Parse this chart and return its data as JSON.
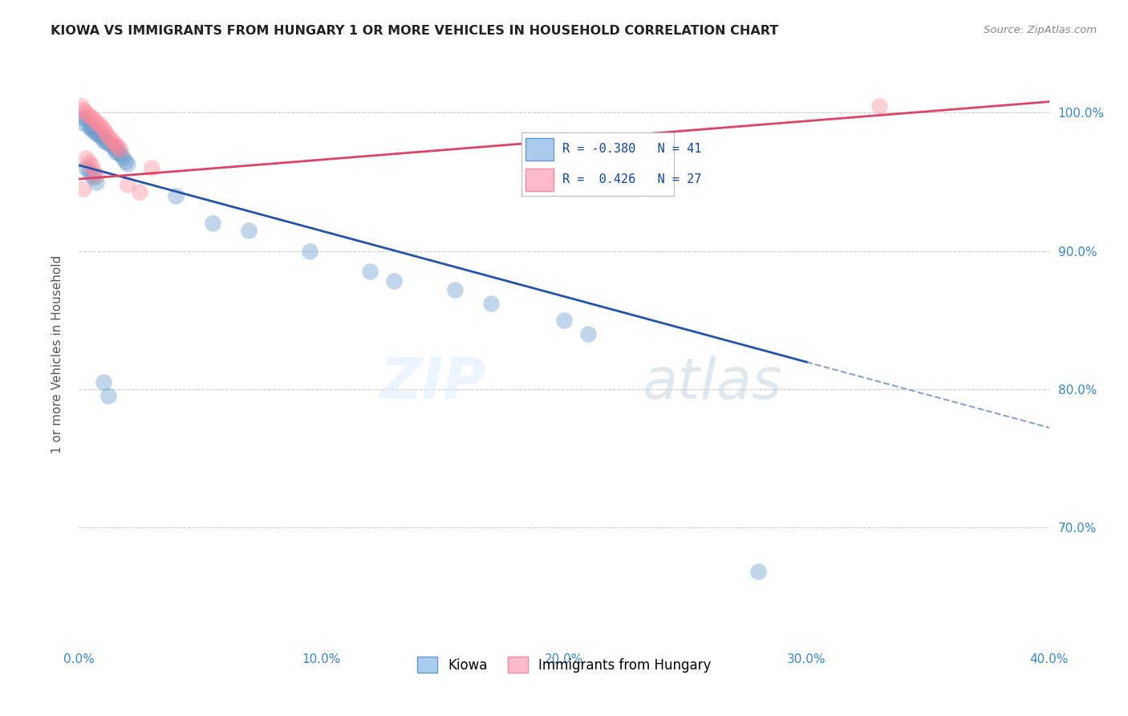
{
  "title": "KIOWA VS IMMIGRANTS FROM HUNGARY 1 OR MORE VEHICLES IN HOUSEHOLD CORRELATION CHART",
  "source": "Source: ZipAtlas.com",
  "ylabel": "1 or more Vehicles in Household",
  "xlim": [
    0.0,
    0.4
  ],
  "ylim": [
    0.615,
    1.035
  ],
  "xtick_labels": [
    "0.0%",
    "",
    "",
    "",
    "",
    "",
    "",
    "",
    "10.0%",
    "",
    "",
    "",
    "",
    "",
    "",
    "",
    "20.0%",
    "",
    "",
    "",
    "",
    "",
    "",
    "",
    "30.0%",
    "",
    "",
    "",
    "",
    "",
    "",
    "",
    "40.0%"
  ],
  "xtick_values": [
    0.0,
    0.0125,
    0.025,
    0.0375,
    0.05,
    0.0625,
    0.075,
    0.0875,
    0.1,
    0.1125,
    0.125,
    0.1375,
    0.15,
    0.1625,
    0.175,
    0.1875,
    0.2,
    0.2125,
    0.225,
    0.2375,
    0.25,
    0.2625,
    0.275,
    0.2875,
    0.3,
    0.3125,
    0.325,
    0.3375,
    0.35,
    0.3625,
    0.375,
    0.3875,
    0.4
  ],
  "ytick_labels": [
    "70.0%",
    "80.0%",
    "90.0%",
    "100.0%"
  ],
  "ytick_values": [
    0.7,
    0.8,
    0.9,
    1.0
  ],
  "kiowa_color": "#6699CC",
  "hungary_color": "#FF8899",
  "kiowa_r": -0.38,
  "kiowa_n": 41,
  "hungary_r": 0.426,
  "hungary_n": 27,
  "legend_label_kiowa": "Kiowa",
  "legend_label_hungary": "Immigrants from Hungary",
  "watermark_zip": "ZIP",
  "watermark_atlas": "atlas",
  "kiowa_line_x": [
    0.0,
    0.4
  ],
  "kiowa_line_y": [
    0.962,
    0.772
  ],
  "kiowa_line_solid_end": 0.3,
  "hungary_line_x": [
    0.0,
    0.4
  ],
  "hungary_line_y": [
    0.952,
    1.008
  ],
  "kiowa_points": [
    [
      0.001,
      0.997
    ],
    [
      0.002,
      0.993
    ],
    [
      0.003,
      0.996
    ],
    [
      0.004,
      0.99
    ],
    [
      0.005,
      0.99
    ],
    [
      0.005,
      0.988
    ],
    [
      0.006,
      0.987
    ],
    [
      0.007,
      0.985
    ],
    [
      0.008,
      0.984
    ],
    [
      0.009,
      0.983
    ],
    [
      0.01,
      0.982
    ],
    [
      0.01,
      0.98
    ],
    [
      0.011,
      0.979
    ],
    [
      0.012,
      0.978
    ],
    [
      0.013,
      0.977
    ],
    [
      0.014,
      0.975
    ],
    [
      0.015,
      0.974
    ],
    [
      0.015,
      0.972
    ],
    [
      0.016,
      0.971
    ],
    [
      0.017,
      0.97
    ],
    [
      0.018,
      0.968
    ],
    [
      0.019,
      0.965
    ],
    [
      0.02,
      0.963
    ],
    [
      0.003,
      0.96
    ],
    [
      0.004,
      0.958
    ],
    [
      0.005,
      0.955
    ],
    [
      0.006,
      0.953
    ],
    [
      0.007,
      0.95
    ],
    [
      0.04,
      0.94
    ],
    [
      0.055,
      0.92
    ],
    [
      0.07,
      0.915
    ],
    [
      0.095,
      0.9
    ],
    [
      0.12,
      0.885
    ],
    [
      0.13,
      0.878
    ],
    [
      0.155,
      0.872
    ],
    [
      0.17,
      0.862
    ],
    [
      0.01,
      0.805
    ],
    [
      0.012,
      0.795
    ],
    [
      0.2,
      0.85
    ],
    [
      0.21,
      0.84
    ],
    [
      0.28,
      0.668
    ]
  ],
  "hungary_points": [
    [
      0.001,
      1.005
    ],
    [
      0.002,
      1.002
    ],
    [
      0.003,
      1.0
    ],
    [
      0.004,
      0.998
    ],
    [
      0.005,
      0.997
    ],
    [
      0.006,
      0.995
    ],
    [
      0.007,
      0.993
    ],
    [
      0.008,
      0.992
    ],
    [
      0.009,
      0.99
    ],
    [
      0.01,
      0.988
    ],
    [
      0.011,
      0.985
    ],
    [
      0.012,
      0.983
    ],
    [
      0.013,
      0.981
    ],
    [
      0.014,
      0.979
    ],
    [
      0.015,
      0.977
    ],
    [
      0.016,
      0.975
    ],
    [
      0.017,
      0.973
    ],
    [
      0.003,
      0.967
    ],
    [
      0.004,
      0.964
    ],
    [
      0.005,
      0.962
    ],
    [
      0.006,
      0.958
    ],
    [
      0.007,
      0.955
    ],
    [
      0.002,
      0.945
    ],
    [
      0.02,
      0.948
    ],
    [
      0.025,
      0.943
    ],
    [
      0.03,
      0.96
    ],
    [
      0.33,
      1.005
    ]
  ]
}
